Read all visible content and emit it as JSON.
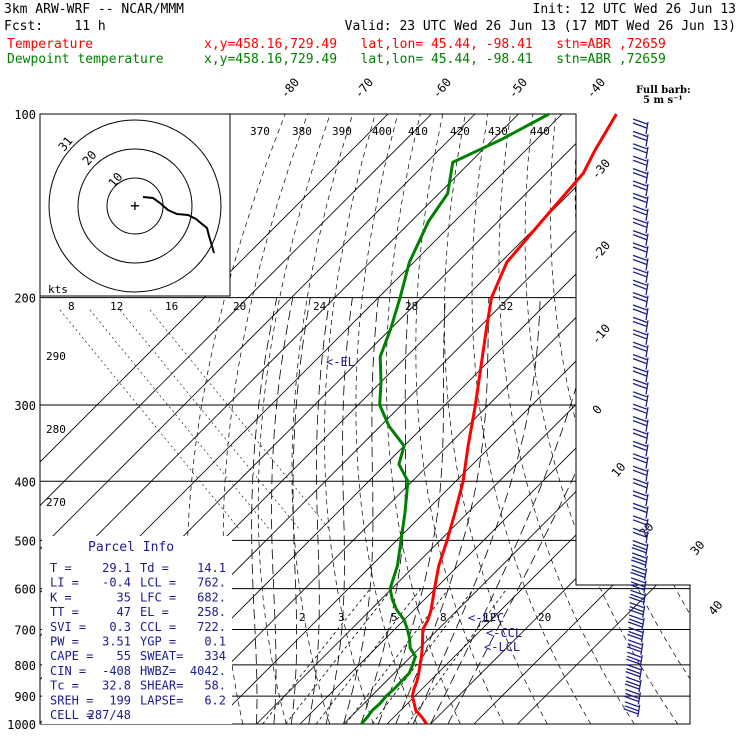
{
  "header": {
    "line1_left": "3km ARW-WRF -- NCAR/MMM",
    "line1_right": "Init: 12 UTC Wed 26 Jun 13",
    "line2_left": "Fcst:    11 h",
    "line2_right": "Valid: 23 UTC Wed 26 Jun 13 (17 MDT Wed 26 Jun 13)",
    "temp_label": "Temperature",
    "temp_info": "x,y=458.16,729.49   lat,lon= 45.44, -98.41   stn=ABR ,72659",
    "dew_label": "Dewpoint temperature",
    "dew_info": "x,y=458.16,729.49   lat,lon= 45.44, -98.41   stn=ABR ,72659",
    "temp_color": "#ff0000",
    "dew_color": "#008000"
  },
  "chart_data": {
    "type": "line",
    "pressure_levels": [
      "100",
      "200",
      "300",
      "400",
      "500",
      "600",
      "700",
      "800",
      "900",
      "1000"
    ],
    "skewed_temp_labels": [
      "-80",
      "-70",
      "-60",
      "-50",
      "-40",
      "-30",
      "-20",
      "-10",
      "0",
      "10",
      "20",
      "30",
      "40"
    ],
    "theta_labels": [
      "370",
      "380",
      "390",
      "400",
      "410",
      "420",
      "430",
      "440"
    ],
    "mixing_ratio_labels": [
      "2",
      "3",
      "5",
      "8",
      "12",
      "20"
    ],
    "hodo_speed_labels": [
      "8",
      "12",
      "16",
      "20",
      "24",
      "28",
      "32"
    ],
    "left_theta_labels": [
      "290",
      "280",
      "270"
    ],
    "hodo_ring_labels": [
      "31",
      "20",
      "10"
    ],
    "wind_barb_legend": "Full barb:",
    "wind_barb_unit": "5 m s⁻¹",
    "kts_label": "kts",
    "annotations": {
      "el": "<-EL",
      "lfc": "<-LFC",
      "ccl": "<-CCL",
      "lcl": "<-LCL"
    },
    "series": [
      {
        "name": "Temperature",
        "color": "#ff0000",
        "points": [
          [
            1000,
            29.1
          ],
          [
            975,
            26.5
          ],
          [
            950,
            23.5
          ],
          [
            925,
            21.5
          ],
          [
            900,
            19.4
          ],
          [
            875,
            18.1
          ],
          [
            850,
            17.0
          ],
          [
            825,
            15.6
          ],
          [
            800,
            14.0
          ],
          [
            775,
            12.4
          ],
          [
            750,
            10.6
          ],
          [
            725,
            8.6
          ],
          [
            700,
            6.5
          ],
          [
            675,
            5.5
          ],
          [
            650,
            3.9
          ],
          [
            600,
            -0.2
          ],
          [
            550,
            -4.5
          ],
          [
            500,
            -8.4
          ],
          [
            450,
            -13.0
          ],
          [
            400,
            -18.3
          ],
          [
            350,
            -25.3
          ],
          [
            300,
            -33.0
          ],
          [
            250,
            -42.5
          ],
          [
            225,
            -48.0
          ],
          [
            200,
            -54.0
          ],
          [
            175,
            -58.6
          ],
          [
            150,
            -60.0
          ],
          [
            125,
            -61.5
          ],
          [
            115,
            -64.0
          ],
          [
            100,
            -67.5
          ]
        ]
      },
      {
        "name": "Dewpoint temperature",
        "color": "#008000",
        "points": [
          [
            1000,
            14.1
          ],
          [
            975,
            13.9
          ],
          [
            950,
            13.5
          ],
          [
            925,
            13.7
          ],
          [
            900,
            13.4
          ],
          [
            875,
            13.6
          ],
          [
            850,
            13.5
          ],
          [
            825,
            13.4
          ],
          [
            800,
            12.3
          ],
          [
            775,
            11.0
          ],
          [
            750,
            7.8
          ],
          [
            725,
            5.6
          ],
          [
            700,
            3.0
          ],
          [
            675,
            0.0
          ],
          [
            650,
            -4.0
          ],
          [
            625,
            -7.4
          ],
          [
            600,
            -10.4
          ],
          [
            550,
            -14.0
          ],
          [
            500,
            -19.0
          ],
          [
            450,
            -24.5
          ],
          [
            400,
            -31.0
          ],
          [
            375,
            -37.0
          ],
          [
            350,
            -40.0
          ],
          [
            325,
            -48.0
          ],
          [
            300,
            -55.0
          ],
          [
            275,
            -60.0
          ],
          [
            250,
            -66.0
          ],
          [
            225,
            -70.0
          ],
          [
            200,
            -75.0
          ],
          [
            175,
            -81.0
          ],
          [
            150,
            -86.0
          ],
          [
            135,
            -88.0
          ],
          [
            120,
            -94.0
          ],
          [
            110,
            -88.0
          ],
          [
            100,
            -83.0
          ]
        ]
      }
    ],
    "parcel_info": {
      "title": "Parcel Info",
      "rows": [
        [
          "T   =",
          "29.1",
          "Td  =",
          "14.1"
        ],
        [
          "LI  =",
          "-0.4",
          "LCL =",
          "762."
        ],
        [
          "K   =",
          "35",
          "LFC =",
          "682."
        ],
        [
          "TT  =",
          "47",
          "EL  =",
          "258."
        ],
        [
          "SVI =",
          "0.3",
          "CCL =",
          "722."
        ],
        [
          "PW  =",
          "3.51",
          "YGP =",
          "0.1"
        ],
        [
          "CAPE =",
          "55",
          "SWEAT=",
          "334"
        ],
        [
          "CIN =",
          "-408",
          "HWBZ=",
          "4042."
        ],
        [
          "Tc  =",
          "32.8",
          "SHEAR=",
          "58."
        ],
        [
          "SREH =",
          "199",
          "LAPSE=",
          "6.2"
        ],
        [
          "CELL =",
          "287/48",
          "",
          ""
        ]
      ]
    }
  }
}
